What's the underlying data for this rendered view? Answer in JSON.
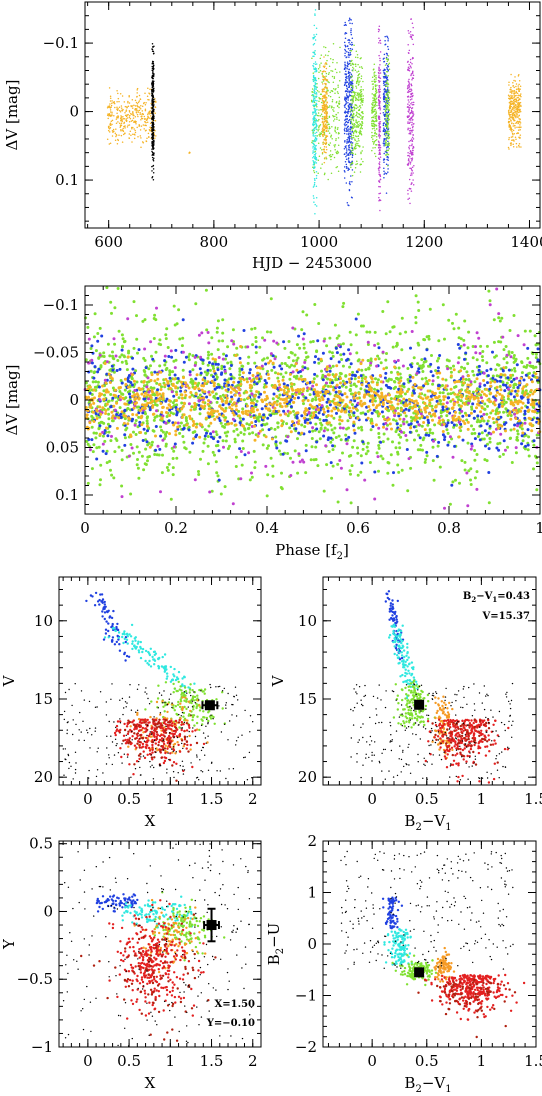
{
  "chart_data": [
    {
      "id": "lightcurve",
      "type": "scatter",
      "xlabel": "HJD − 2453000",
      "ylabel": "ΔV [mag]",
      "xlim": [
        555,
        1420
      ],
      "ylim": [
        0.17,
        -0.16
      ],
      "xticks": [
        600,
        800,
        1000,
        1200,
        1400
      ],
      "yticks": [
        -0.1,
        0,
        0.1
      ],
      "ytick_labels": [
        "−0.1",
        "0",
        "0.1"
      ],
      "groups": [
        {
          "x": [
            598,
            690
          ],
          "ymid": 0.01,
          "spread": 0.045,
          "density": 4,
          "color": "#f5b324"
        },
        {
          "x": [
            682,
            686
          ],
          "ymid": 0.0,
          "spread": 0.1,
          "density": 60,
          "color": "#000000"
        },
        {
          "x": [
            752,
            756
          ],
          "ymid": 0.06,
          "spread": 0.002,
          "density": 1,
          "color": "#f5b324"
        },
        {
          "x": [
            986,
            1040
          ],
          "ymid": 0.0,
          "spread": 0.1,
          "density": 5,
          "color": "#80e031"
        },
        {
          "x": [
            988,
            996
          ],
          "ymid": 0.0,
          "spread": 0.15,
          "density": 25,
          "color": "#30e8e0"
        },
        {
          "x": [
            1006,
            1016
          ],
          "ymid": 0.0,
          "spread": 0.08,
          "density": 20,
          "color": "#f5b324"
        },
        {
          "x": [
            1048,
            1064
          ],
          "ymid": 0.0,
          "spread": 0.14,
          "density": 22,
          "color": "#2040e0"
        },
        {
          "x": [
            1060,
            1084
          ],
          "ymid": 0.0,
          "spread": 0.1,
          "density": 12,
          "color": "#80e031"
        },
        {
          "x": [
            1100,
            1110
          ],
          "ymid": 0.0,
          "spread": 0.07,
          "density": 14,
          "color": "#80e031"
        },
        {
          "x": [
            1113,
            1117
          ],
          "ymid": 0.01,
          "spread": 0.14,
          "density": 30,
          "color": "#c040d0"
        },
        {
          "x": [
            1122,
            1132
          ],
          "ymid": 0.0,
          "spread": 0.12,
          "density": 22,
          "color": "#2040e0"
        },
        {
          "x": [
            1126,
            1134
          ],
          "ymid": 0.0,
          "spread": 0.09,
          "density": 15,
          "color": "#80e031"
        },
        {
          "x": [
            1168,
            1180
          ],
          "ymid": 0.0,
          "spread": 0.14,
          "density": 18,
          "color": "#c040d0"
        },
        {
          "x": [
            1360,
            1384
          ],
          "ymid": 0.0,
          "spread": 0.055,
          "density": 12,
          "color": "#f5b324"
        }
      ]
    },
    {
      "id": "phase",
      "type": "scatter",
      "xlabel": "Phase [f",
      "xlabel_sub": "2",
      "xlabel_end": "]",
      "ylabel": "ΔV [mag]",
      "xlim": [
        0,
        1
      ],
      "ylim": [
        0.12,
        -0.12
      ],
      "xticks": [
        0,
        0.2,
        0.4,
        0.6,
        0.8,
        1
      ],
      "xtick_labels": [
        "0",
        "0.2",
        "0.4",
        "0.6",
        "0.8",
        "1"
      ],
      "yticks": [
        -0.1,
        -0.05,
        0,
        0.05,
        0.1
      ],
      "ytick_labels": [
        "−0.1",
        "−0.05",
        "0",
        "0.05",
        "0.1"
      ],
      "series": [
        {
          "color": "#80e031",
          "n": 1800,
          "spread": 0.075
        },
        {
          "color": "#2040e0",
          "n": 700,
          "spread": 0.05
        },
        {
          "color": "#c040d0",
          "n": 250,
          "spread": 0.08
        },
        {
          "color": "#f5b324",
          "n": 900,
          "spread": 0.032
        }
      ]
    },
    {
      "id": "cmd-x-v",
      "type": "scatter",
      "xlabel": "X",
      "ylabel": "V",
      "xlim": [
        -0.35,
        2.1
      ],
      "ylim": [
        20.5,
        7.2
      ],
      "xticks": [
        0,
        0.5,
        1,
        1.5,
        2
      ],
      "xtick_labels": [
        "0",
        "0.5",
        "1",
        "1.5",
        "2"
      ],
      "yticks": [
        10,
        15,
        20
      ],
      "star": {
        "x": 1.48,
        "y": 15.4,
        "xerr": 0.09,
        "yerr": 0.0
      }
    },
    {
      "id": "cmd-bv-v",
      "type": "scatter",
      "xlabel": "B",
      "xlabel_sub1": "2",
      "xlabel_mid": "−V",
      "xlabel_sub2": "1",
      "ylabel": "V",
      "xlim": [
        -0.45,
        1.5
      ],
      "ylim": [
        20.5,
        7.2
      ],
      "xticks": [
        0,
        0.5,
        1,
        1.5
      ],
      "xtick_labels": [
        "0",
        "0.5",
        "1",
        "1.5"
      ],
      "yticks": [
        10,
        15,
        20
      ],
      "star": {
        "x": 0.43,
        "y": 15.37,
        "xerr": 0.0,
        "yerr": 0.0
      },
      "annotation_line1_a": "B",
      "annotation_line1_sub1": "2",
      "annotation_line1_b": "−V",
      "annotation_line1_sub2": "1",
      "annotation_line1_c": "=0.43",
      "annotation_line2": "V=15.37"
    },
    {
      "id": "ccd-x-y",
      "type": "scatter",
      "xlabel": "X",
      "ylabel": "Y",
      "xlim": [
        -0.35,
        2.1
      ],
      "ylim": [
        -1.0,
        0.52
      ],
      "xticks": [
        0,
        0.5,
        1,
        1.5,
        2
      ],
      "xtick_labels": [
        "0",
        "0.5",
        "1",
        "1.5",
        "2"
      ],
      "yticks": [
        -1,
        -0.5,
        0,
        0.5
      ],
      "ytick_labels": [
        "−1",
        "−0.5",
        "0",
        "0.5"
      ],
      "star": {
        "x": 1.5,
        "y": -0.1,
        "xerr": 0.09,
        "yerr": 0.12
      },
      "annotation_line1": "X=1.50",
      "annotation_line2": "Y=−0.10"
    },
    {
      "id": "ccd-bv-bu",
      "type": "scatter",
      "xlabel": "B",
      "xlabel_sub1": "2",
      "xlabel_mid": "−V",
      "xlabel_sub2": "1",
      "ylabel": "B",
      "ylabel_sub": "2",
      "ylabel_end": "−U",
      "xlim": [
        -0.45,
        1.5
      ],
      "ylim": [
        -2.0,
        2.0
      ],
      "xticks": [
        0,
        0.5,
        1,
        1.5
      ],
      "xtick_labels": [
        "0",
        "0.5",
        "1",
        "1.5"
      ],
      "yticks": [
        -2,
        -1,
        0,
        1,
        2
      ],
      "ytick_labels": [
        "−2",
        "−1",
        "0",
        "1",
        "2"
      ],
      "star": {
        "x": 0.43,
        "y": -0.55,
        "xerr": 0.0,
        "yerr": 0.0
      }
    }
  ],
  "colors": {
    "black": "#000000",
    "blue": "#2040e0",
    "cyan": "#30e8e0",
    "green": "#80e031",
    "orange": "#f59a24",
    "gold": "#f5b324",
    "red": "#e32020",
    "dark_red": "#b02010",
    "magenta": "#c040d0"
  }
}
